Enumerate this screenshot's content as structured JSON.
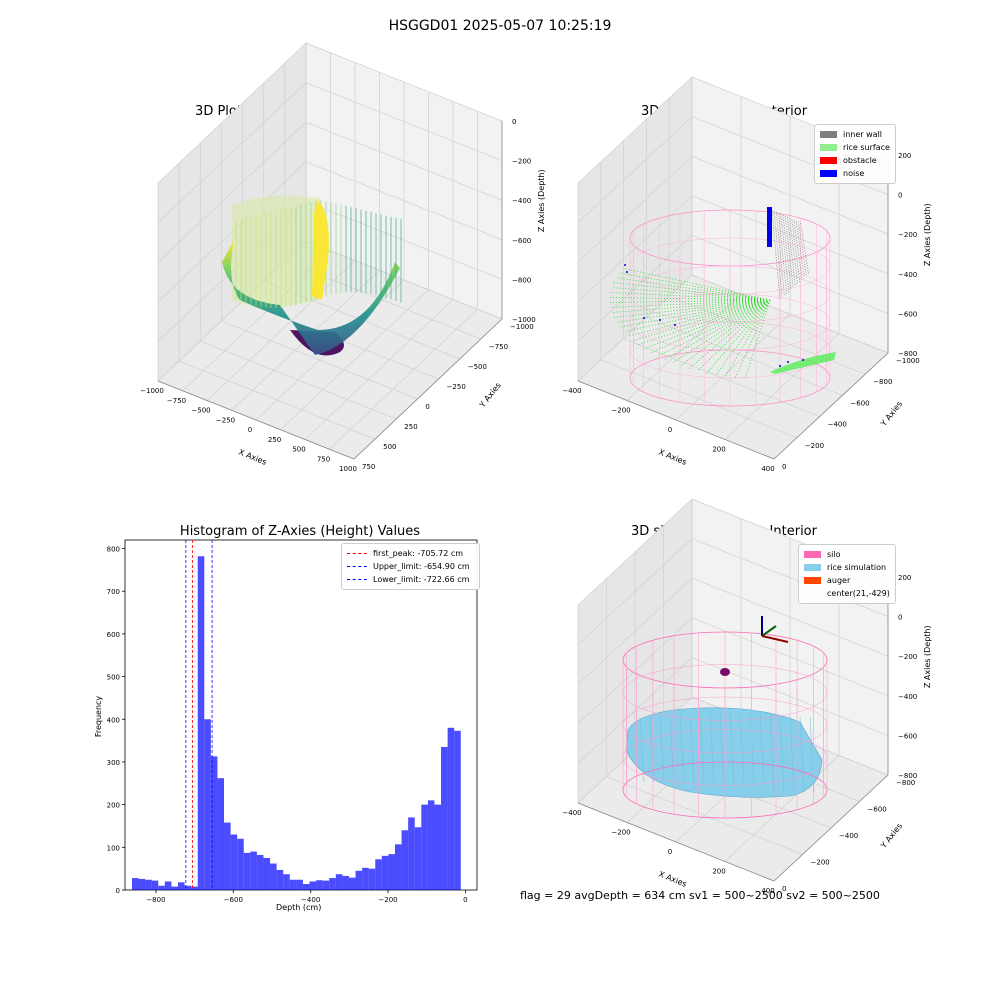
{
  "suptitle": "HSGGD01 2025-05-07 10:25:19",
  "plot1": {
    "title": "3D Plot of Silo Interior(row data)",
    "xlabel": "X Axies",
    "ylabel": "Y Axies",
    "zlabel": "Z Axies (Depth)",
    "xticks": [
      "−1000",
      "−750",
      "−500",
      "−250",
      "0",
      "250",
      "500",
      "750",
      "1000"
    ],
    "yticks": [
      "750",
      "500",
      "250",
      "0",
      "−250",
      "−500",
      "−750",
      "−1000"
    ],
    "zticks": [
      "0",
      "−200",
      "−400",
      "−600",
      "−800",
      "−1000"
    ]
  },
  "plot2": {
    "title": "3D classify of Silo Interior",
    "xlabel": "X Axies",
    "ylabel": "Y Axies",
    "zlabel": "Z Axies (Depth)",
    "xticks": [
      "−400",
      "−200",
      "0",
      "200",
      "400"
    ],
    "yticks": [
      "0",
      "−200",
      "−400",
      "−600",
      "−800",
      "−1000"
    ],
    "zticks": [
      "200",
      "0",
      "−200",
      "−400",
      "−600",
      "−800"
    ],
    "legend": [
      {
        "label": "inner wall",
        "color": "#808080"
      },
      {
        "label": "rice surface",
        "color": "#90EE90"
      },
      {
        "label": "obstacle",
        "color": "#FF0000"
      },
      {
        "label": "noise",
        "color": "#0000FF"
      }
    ]
  },
  "plot3": {
    "title": "3D simulation of Silo Interior",
    "xlabel": "X Axies",
    "ylabel": "Y Axies",
    "zlabel": "Z Axies (Depth)",
    "xticks": [
      "−400",
      "−200",
      "0",
      "200",
      "400"
    ],
    "yticks": [
      "0",
      "−200",
      "−400",
      "−600",
      "−800"
    ],
    "zticks": [
      "200",
      "0",
      "−200",
      "−400",
      "−600",
      "−800"
    ],
    "legend": [
      {
        "label": "silo",
        "color": "#FF69B4"
      },
      {
        "label": "rice simulation",
        "color": "#87CEEB"
      },
      {
        "label": "auger",
        "color": "#FF4500"
      },
      {
        "label": "center(21,-429)",
        "color": ""
      }
    ]
  },
  "footer": "flag = 29  avgDepth = 634 cm  sv1 = 500~2500  sv2 = 500~2500",
  "chart_data": [
    {
      "type": "bar",
      "title": "Histogram of Z-Axies (Height) Values",
      "xlabel": "Depth (cm)",
      "ylabel": "Frequency",
      "xlim": [
        -880,
        30
      ],
      "ylim": [
        0,
        820
      ],
      "xticks": [
        -800,
        -600,
        -400,
        -200,
        0
      ],
      "yticks": [
        0,
        100,
        200,
        300,
        400,
        500,
        600,
        700,
        800
      ],
      "bar_color": "#0000FF",
      "bin_edges": [
        -862,
        -845,
        -828,
        -811,
        -794,
        -777,
        -760,
        -743,
        -726,
        -709,
        -692,
        -675,
        -658,
        -641,
        -624,
        -607,
        -590,
        -573,
        -556,
        -539,
        -522,
        -505,
        -488,
        -471,
        -454,
        -437,
        -420,
        -403,
        -386,
        -369,
        -352,
        -335,
        -318,
        -301,
        -284,
        -267,
        -250,
        -233,
        -216,
        -199,
        -182,
        -165,
        -148,
        -131,
        -114,
        -97,
        -80,
        -63,
        -46,
        -29,
        -12
      ],
      "values": [
        28,
        26,
        24,
        22,
        10,
        20,
        8,
        18,
        10,
        8,
        782,
        400,
        313,
        262,
        158,
        130,
        120,
        87,
        90,
        82,
        75,
        62,
        47,
        37,
        24,
        24,
        14,
        20,
        23,
        22,
        28,
        37,
        33,
        29,
        45,
        52,
        50,
        72,
        80,
        84,
        107,
        140,
        170,
        147,
        200,
        210,
        200,
        335,
        380,
        373
      ],
      "vlines": [
        {
          "name": "first_peak: -705.72 cm",
          "x": -705.72,
          "color": "#FF0000"
        },
        {
          "name": "Upper_limit: -654.90 cm",
          "x": -654.9,
          "color": "#0000FF"
        },
        {
          "name": "Lower_limit: -722.66 cm",
          "x": -722.66,
          "color": "#0000FF"
        }
      ],
      "legend_position": "upper-right"
    }
  ]
}
